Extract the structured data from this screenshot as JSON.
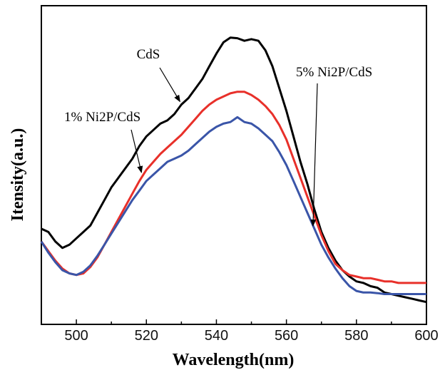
{
  "chart_data": {
    "type": "line",
    "title": "",
    "xlabel": "Wavelength(nm)",
    "ylabel": "Itensity(a.u.)",
    "xlim": [
      490,
      600
    ],
    "xticks": [
      500,
      520,
      540,
      560,
      580,
      600
    ],
    "yticks_shown": false,
    "grid": false,
    "legend": "none",
    "annotations": [
      {
        "text": "CdS",
        "target_series": 0
      },
      {
        "text": "1% Ni2P/CdS",
        "target_series": 1
      },
      {
        "text": "5% Ni2P/CdS",
        "target_series": 2
      }
    ],
    "x": [
      490,
      492,
      494,
      496,
      498,
      500,
      502,
      504,
      506,
      508,
      510,
      512,
      514,
      516,
      518,
      520,
      522,
      524,
      526,
      528,
      530,
      532,
      534,
      536,
      538,
      540,
      542,
      544,
      546,
      548,
      550,
      552,
      554,
      556,
      558,
      560,
      562,
      564,
      566,
      568,
      570,
      572,
      574,
      576,
      578,
      580,
      582,
      584,
      586,
      588,
      590,
      592,
      594,
      596,
      598,
      600
    ],
    "series": [
      {
        "color": "#000000",
        "values": [
          3.0,
          2.9,
          2.6,
          2.4,
          2.5,
          2.7,
          2.9,
          3.1,
          3.5,
          3.9,
          4.3,
          4.6,
          4.9,
          5.2,
          5.6,
          5.9,
          6.1,
          6.3,
          6.4,
          6.6,
          6.9,
          7.1,
          7.4,
          7.7,
          8.1,
          8.5,
          8.85,
          9.0,
          8.98,
          8.9,
          8.95,
          8.9,
          8.6,
          8.1,
          7.4,
          6.7,
          5.9,
          5.1,
          4.4,
          3.6,
          2.9,
          2.4,
          2.0,
          1.7,
          1.5,
          1.35,
          1.3,
          1.2,
          1.15,
          1.0,
          0.95,
          0.9,
          0.85,
          0.8,
          0.75,
          0.7
        ]
      },
      {
        "color": "#e8302a",
        "values": [
          2.6,
          2.3,
          2.0,
          1.75,
          1.6,
          1.55,
          1.6,
          1.8,
          2.1,
          2.5,
          2.9,
          3.3,
          3.7,
          4.1,
          4.5,
          4.85,
          5.1,
          5.35,
          5.55,
          5.75,
          5.95,
          6.2,
          6.45,
          6.7,
          6.9,
          7.05,
          7.15,
          7.25,
          7.3,
          7.3,
          7.2,
          7.05,
          6.85,
          6.6,
          6.25,
          5.8,
          5.2,
          4.6,
          4.0,
          3.4,
          2.8,
          2.3,
          1.9,
          1.7,
          1.55,
          1.5,
          1.45,
          1.45,
          1.4,
          1.35,
          1.35,
          1.3,
          1.3,
          1.3,
          1.3,
          1.3
        ]
      },
      {
        "color": "#3a55a8",
        "values": [
          2.6,
          2.25,
          1.95,
          1.7,
          1.6,
          1.55,
          1.65,
          1.85,
          2.15,
          2.5,
          2.85,
          3.2,
          3.55,
          3.9,
          4.2,
          4.5,
          4.7,
          4.9,
          5.1,
          5.2,
          5.3,
          5.45,
          5.65,
          5.85,
          6.05,
          6.2,
          6.3,
          6.35,
          6.5,
          6.35,
          6.3,
          6.15,
          5.95,
          5.75,
          5.4,
          5.0,
          4.5,
          4.0,
          3.5,
          3.0,
          2.5,
          2.1,
          1.75,
          1.45,
          1.2,
          1.05,
          1.0,
          1.0,
          0.98,
          0.95,
          0.95,
          0.95,
          0.95,
          0.95,
          0.95,
          0.95
        ]
      }
    ]
  }
}
